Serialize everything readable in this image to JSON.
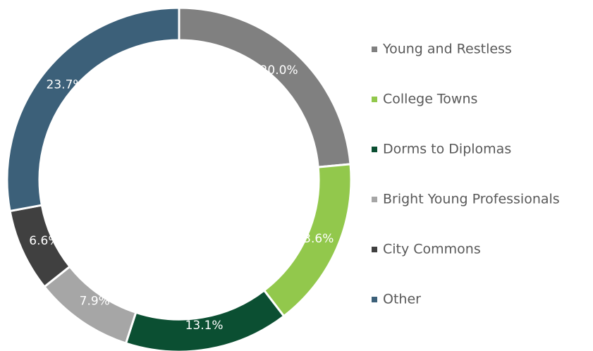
{
  "chart_data": {
    "type": "donut",
    "categories": [
      "Young and Restless",
      "College Towns",
      "Dorms to Diplomas",
      "Bright Young Professionals",
      "City Commons",
      "Other"
    ],
    "values": [
      20.0,
      13.6,
      13.1,
      7.9,
      6.6,
      23.7
    ],
    "value_labels": [
      "20.0%",
      "13.6%",
      "13.1%",
      "7.9%",
      "6.6%",
      "23.7%"
    ],
    "colors": [
      "#808080",
      "#92c84c",
      "#0b4f32",
      "#a6a6a6",
      "#404040",
      "#3c6079"
    ],
    "legend": "right"
  }
}
